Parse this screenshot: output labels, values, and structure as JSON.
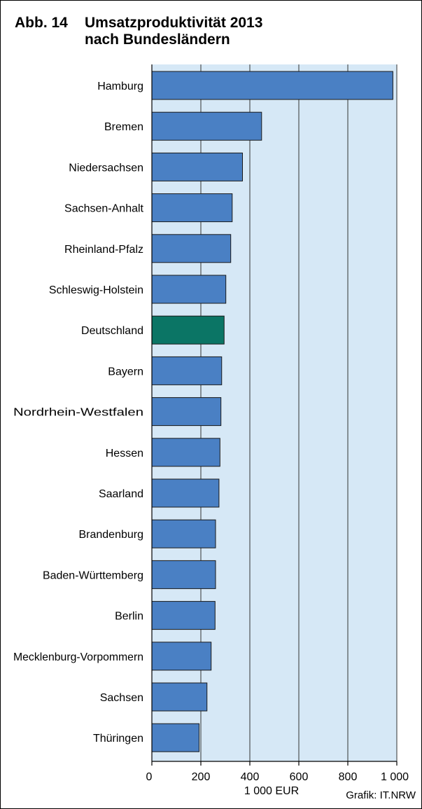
{
  "header": {
    "fig_number": "Abb. 14",
    "title_line1": "Umsatzproduktivität 2013",
    "title_line2": "nach Bundesländern"
  },
  "footer": {
    "source": "Grafik: IT.NRW"
  },
  "colors": {
    "plot_background": "#d6e8f6",
    "bar_default": "#4a80c4",
    "bar_highlight": "#0b7565",
    "bar_outline": "#1a1a1a",
    "grid": "#333333"
  },
  "chart_data": {
    "type": "bar",
    "orientation": "horizontal",
    "title": "Umsatzproduktivität 2013 nach Bundesländern",
    "xlabel": "1 000 EUR",
    "ylabel": "",
    "xlim": [
      0,
      1000
    ],
    "xticks": [
      0,
      200,
      400,
      600,
      800,
      1000
    ],
    "xtick_labels": [
      "0",
      "200",
      "400",
      "600",
      "800",
      "1 000"
    ],
    "grid": true,
    "highlight": "Deutschland",
    "categories": [
      "Hamburg",
      "Bremen",
      "Niedersachsen",
      "Sachsen-Anhalt",
      "Rheinland-Pfalz",
      "Schleswig-Holstein",
      "Deutschland",
      "Bayern",
      "Nordrhein-Westfalen",
      "Hessen",
      "Saarland",
      "Brandenburg",
      "Baden-Württemberg",
      "Berlin",
      "Mecklenburg-Vorpommern",
      "Sachsen",
      "Thüringen"
    ],
    "values": [
      984,
      448,
      370,
      328,
      322,
      302,
      295,
      285,
      282,
      278,
      274,
      260,
      260,
      258,
      242,
      225,
      193
    ]
  }
}
